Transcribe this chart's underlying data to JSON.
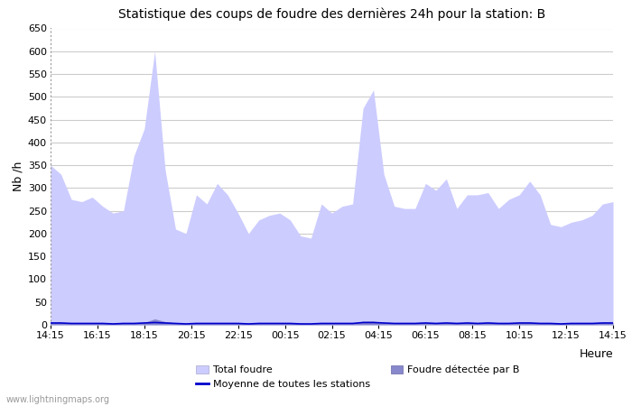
{
  "title": "Statistique des coups de foudre des dernières 24h pour la station: B",
  "xlabel": "Heure",
  "ylabel": "Nb /h",
  "ylim": [
    0,
    650
  ],
  "yticks": [
    0,
    50,
    100,
    150,
    200,
    250,
    300,
    350,
    400,
    450,
    500,
    550,
    600,
    650
  ],
  "xtick_labels": [
    "14:15",
    "16:15",
    "18:15",
    "20:15",
    "22:15",
    "00:15",
    "02:15",
    "04:15",
    "06:15",
    "08:15",
    "10:15",
    "12:15",
    "14:15"
  ],
  "watermark": "www.lightningmaps.org",
  "bg_color": "#ffffff",
  "plot_bg_color": "#e8e8f8",
  "grid_color": "#cccccc",
  "fill_total_color": "#ccccff",
  "fill_station_color": "#8888cc",
  "line_moyenne_color": "#0000cc",
  "total_foudre_label": "Total foudre",
  "station_label": "Foudre détectée par B",
  "moyenne_label": "Moyenne de toutes les stations",
  "total_foudre": [
    350,
    330,
    275,
    270,
    280,
    260,
    245,
    250,
    370,
    430,
    600,
    340,
    210,
    200,
    285,
    265,
    310,
    285,
    245,
    200,
    230,
    240,
    245,
    230,
    195,
    190,
    265,
    245,
    260,
    265,
    475,
    515,
    330,
    260,
    255,
    255,
    310,
    295,
    320,
    255,
    285,
    285,
    290,
    255,
    275,
    285,
    315,
    285,
    220,
    215,
    225,
    230,
    240,
    265,
    270
  ],
  "station_foudre": [
    5,
    5,
    4,
    4,
    4,
    4,
    3,
    4,
    4,
    5,
    13,
    7,
    4,
    3,
    4,
    4,
    4,
    4,
    4,
    3,
    4,
    4,
    4,
    4,
    3,
    3,
    4,
    4,
    4,
    4,
    8,
    8,
    5,
    4,
    4,
    4,
    5,
    4,
    5,
    4,
    5,
    4,
    5,
    4,
    4,
    5,
    5,
    4,
    4,
    3,
    4,
    4,
    4,
    5,
    5
  ],
  "moyenne": [
    4,
    4,
    3,
    3,
    3,
    3,
    2,
    3,
    3,
    4,
    5,
    4,
    3,
    2,
    3,
    3,
    3,
    3,
    3,
    2,
    3,
    3,
    3,
    3,
    2,
    2,
    3,
    3,
    3,
    3,
    5,
    5,
    4,
    3,
    3,
    3,
    4,
    3,
    4,
    3,
    4,
    3,
    4,
    3,
    3,
    4,
    4,
    3,
    3,
    2,
    3,
    3,
    3,
    4,
    4
  ]
}
